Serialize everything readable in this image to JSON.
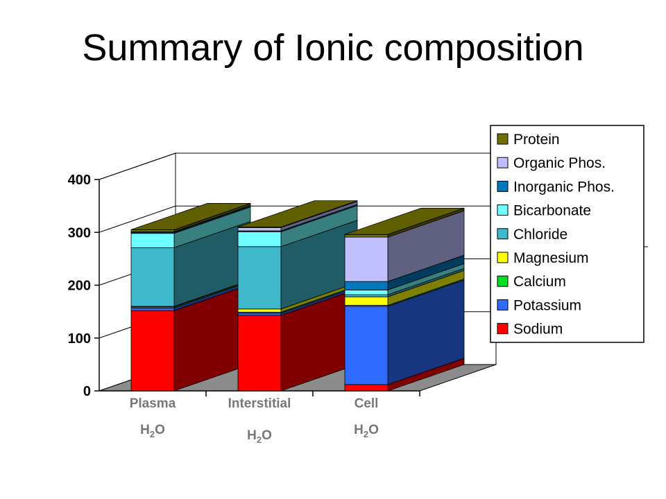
{
  "title": "Summary of Ionic composition",
  "colors": {
    "Sodium": "#ff0000",
    "Potassium": "#2f6bff",
    "Calcium": "#00e020",
    "Magnesium": "#ffff00",
    "Chloride": "#40b8cc",
    "Bicarbonate": "#70ffff",
    "Inorganic Phos.": "#0078c0",
    "Organic Phos.": "#c0c0ff",
    "Protein": "#707000"
  },
  "chart_data": {
    "type": "bar",
    "stacked": true,
    "three_d": true,
    "categories": [
      "Plasma",
      "Interstitial",
      "Cell"
    ],
    "category_sublabels": [
      "H2O",
      "H2O",
      "H2O"
    ],
    "ylim": [
      0,
      400
    ],
    "yticks": [
      0,
      100,
      200,
      300,
      400
    ],
    "legend_position": "right",
    "series": [
      {
        "name": "Sodium",
        "values": [
          152,
          143,
          12
        ]
      },
      {
        "name": "Potassium",
        "values": [
          5,
          4,
          148
        ]
      },
      {
        "name": "Calcium",
        "values": [
          2,
          2,
          2
        ]
      },
      {
        "name": "Magnesium",
        "values": [
          1,
          6,
          16
        ]
      },
      {
        "name": "Chloride",
        "values": [
          111,
          118,
          4
        ]
      },
      {
        "name": "Bicarbonate",
        "values": [
          27,
          28,
          9
        ]
      },
      {
        "name": "Inorganic Phos.",
        "values": [
          2,
          2,
          16
        ]
      },
      {
        "name": "Organic Phos.",
        "values": [
          1,
          6,
          84
        ]
      },
      {
        "name": "Protein",
        "values": [
          4,
          1,
          5
        ]
      }
    ],
    "legend_order": [
      "Protein",
      "Organic Phos.",
      "Inorganic Phos.",
      "Bicarbonate",
      "Chloride",
      "Magnesium",
      "Calcium",
      "Potassium",
      "Sodium"
    ]
  }
}
